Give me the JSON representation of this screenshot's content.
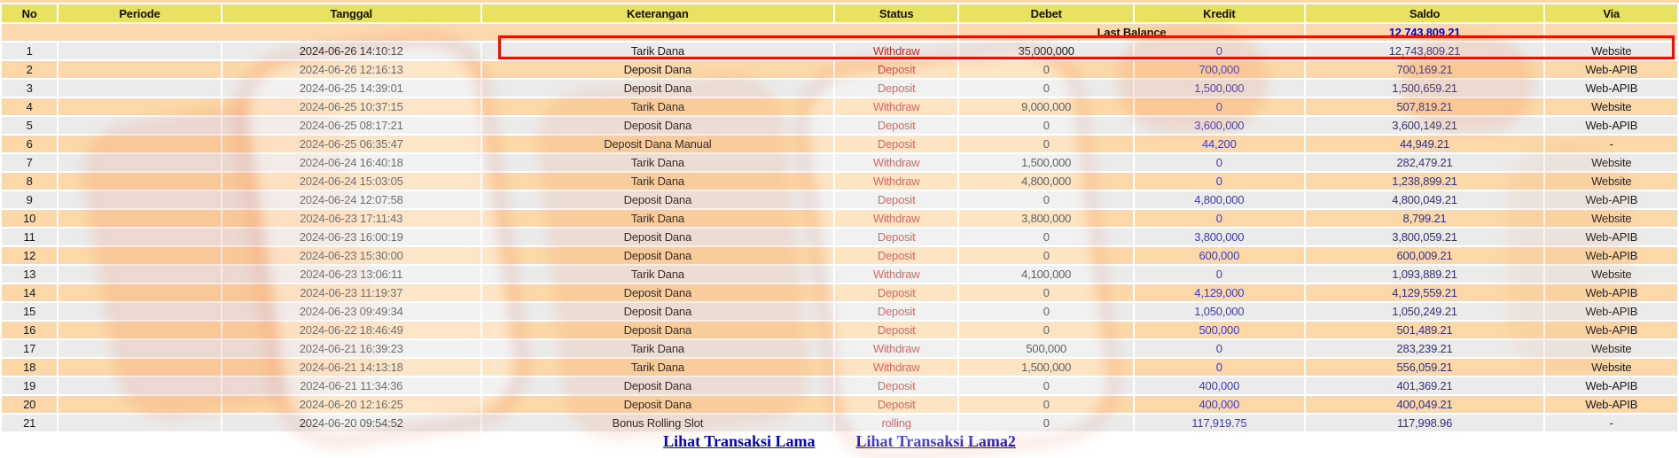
{
  "table": {
    "columns": [
      "No",
      "Periode",
      "Tanggal",
      "Keterangan",
      "Status",
      "Debet",
      "Kredit",
      "Saldo",
      "Via"
    ],
    "last_balance": {
      "label": "Last Balance",
      "saldo": "12,743,809.21"
    },
    "rows": [
      {
        "no": "1",
        "periode": "",
        "tanggal": "2024-06-26 14:10:12",
        "keterangan": "Tarik Dana",
        "status": "Withdraw",
        "debet": "35,000,000",
        "kredit": "0",
        "saldo": "12,743,809.21",
        "via": "Website",
        "highlighted": true
      },
      {
        "no": "2",
        "periode": "",
        "tanggal": "2024-06-26 12:16:13",
        "keterangan": "Deposit Dana",
        "status": "Deposit",
        "debet": "0",
        "kredit": "700,000",
        "saldo": "700,169.21",
        "via": "Web-APIB",
        "highlighted": false
      },
      {
        "no": "3",
        "periode": "",
        "tanggal": "2024-06-25 14:39:01",
        "keterangan": "Deposit Dana",
        "status": "Deposit",
        "debet": "0",
        "kredit": "1,500,000",
        "saldo": "1,500,659.21",
        "via": "Web-APIB",
        "highlighted": false
      },
      {
        "no": "4",
        "periode": "",
        "tanggal": "2024-06-25 10:37:15",
        "keterangan": "Tarik Dana",
        "status": "Withdraw",
        "debet": "9,000,000",
        "kredit": "0",
        "saldo": "507,819.21",
        "via": "Website",
        "highlighted": false
      },
      {
        "no": "5",
        "periode": "",
        "tanggal": "2024-06-25 08:17:21",
        "keterangan": "Deposit Dana",
        "status": "Deposit",
        "debet": "0",
        "kredit": "3,600,000",
        "saldo": "3,600,149.21",
        "via": "Web-APIB",
        "highlighted": false
      },
      {
        "no": "6",
        "periode": "",
        "tanggal": "2024-06-25 06:35:47",
        "keterangan": "Deposit Dana Manual",
        "status": "Deposit",
        "debet": "0",
        "kredit": "44,200",
        "saldo": "44,949.21",
        "via": "-",
        "highlighted": false
      },
      {
        "no": "7",
        "periode": "",
        "tanggal": "2024-06-24 16:40:18",
        "keterangan": "Tarik Dana",
        "status": "Withdraw",
        "debet": "1,500,000",
        "kredit": "0",
        "saldo": "282,479.21",
        "via": "Website",
        "highlighted": false
      },
      {
        "no": "8",
        "periode": "",
        "tanggal": "2024-06-24 15:03:05",
        "keterangan": "Tarik Dana",
        "status": "Withdraw",
        "debet": "4,800,000",
        "kredit": "0",
        "saldo": "1,238,899.21",
        "via": "Website",
        "highlighted": false
      },
      {
        "no": "9",
        "periode": "",
        "tanggal": "2024-06-24 12:07:58",
        "keterangan": "Deposit Dana",
        "status": "Deposit",
        "debet": "0",
        "kredit": "4,800,000",
        "saldo": "4,800,049.21",
        "via": "Web-APIB",
        "highlighted": false
      },
      {
        "no": "10",
        "periode": "",
        "tanggal": "2024-06-23 17:11:43",
        "keterangan": "Tarik Dana",
        "status": "Withdraw",
        "debet": "3,800,000",
        "kredit": "0",
        "saldo": "8,799.21",
        "via": "Website",
        "highlighted": false
      },
      {
        "no": "11",
        "periode": "",
        "tanggal": "2024-06-23 16:00:19",
        "keterangan": "Deposit Dana",
        "status": "Deposit",
        "debet": "0",
        "kredit": "3,800,000",
        "saldo": "3,800,059.21",
        "via": "Web-APIB",
        "highlighted": false
      },
      {
        "no": "12",
        "periode": "",
        "tanggal": "2024-06-23 15:30:00",
        "keterangan": "Deposit Dana",
        "status": "Deposit",
        "debet": "0",
        "kredit": "600,000",
        "saldo": "600,009.21",
        "via": "Web-APIB",
        "highlighted": false
      },
      {
        "no": "13",
        "periode": "",
        "tanggal": "2024-06-23 13:06:11",
        "keterangan": "Tarik Dana",
        "status": "Withdraw",
        "debet": "4,100,000",
        "kredit": "0",
        "saldo": "1,093,889.21",
        "via": "Website",
        "highlighted": false
      },
      {
        "no": "14",
        "periode": "",
        "tanggal": "2024-06-23 11:19:37",
        "keterangan": "Deposit Dana",
        "status": "Deposit",
        "debet": "0",
        "kredit": "4,129,000",
        "saldo": "4,129,559.21",
        "via": "Web-APIB",
        "highlighted": false
      },
      {
        "no": "15",
        "periode": "",
        "tanggal": "2024-06-23 09:49:34",
        "keterangan": "Deposit Dana",
        "status": "Deposit",
        "debet": "0",
        "kredit": "1,050,000",
        "saldo": "1,050,249.21",
        "via": "Web-APIB",
        "highlighted": false
      },
      {
        "no": "16",
        "periode": "",
        "tanggal": "2024-06-22 18:46:49",
        "keterangan": "Deposit Dana",
        "status": "Deposit",
        "debet": "0",
        "kredit": "500,000",
        "saldo": "501,489.21",
        "via": "Web-APIB",
        "highlighted": false
      },
      {
        "no": "17",
        "periode": "",
        "tanggal": "2024-06-21 16:39:23",
        "keterangan": "Tarik Dana",
        "status": "Withdraw",
        "debet": "500,000",
        "kredit": "0",
        "saldo": "283,239.21",
        "via": "Website",
        "highlighted": false
      },
      {
        "no": "18",
        "periode": "",
        "tanggal": "2024-06-21 14:13:18",
        "keterangan": "Tarik Dana",
        "status": "Withdraw",
        "debet": "1,500,000",
        "kredit": "0",
        "saldo": "556,059.21",
        "via": "Website",
        "highlighted": false
      },
      {
        "no": "19",
        "periode": "",
        "tanggal": "2024-06-21 11:34:36",
        "keterangan": "Deposit Dana",
        "status": "Deposit",
        "debet": "0",
        "kredit": "400,000",
        "saldo": "401,369.21",
        "via": "Web-APIB",
        "highlighted": false
      },
      {
        "no": "20",
        "periode": "",
        "tanggal": "2024-06-20 12:16:25",
        "keterangan": "Deposit Dana",
        "status": "Deposit",
        "debet": "0",
        "kredit": "400,000",
        "saldo": "400,049.21",
        "via": "Web-APIB",
        "highlighted": false
      },
      {
        "no": "21",
        "periode": "",
        "tanggal": "2024-06-20 09:54:52",
        "keterangan": "Bonus Rolling Slot",
        "status": "rolling",
        "debet": "0",
        "kredit": "117,919.75",
        "saldo": "117,998.96",
        "via": "-",
        "highlighted": false
      }
    ]
  },
  "footer": {
    "links": [
      {
        "label": "Lihat Transaksi Lama"
      },
      {
        "label": "Lihat Transaksi Lama2"
      }
    ]
  },
  "colors": {
    "header_bg": "#e9e161",
    "row_odd": "#ebebeb",
    "row_even": "#fcd8a8",
    "lastbal_bg": "#fcd8ae",
    "status_red": "#c32a22",
    "kredit_blue": "#3b3bcf",
    "saldo_navy": "#32327e",
    "balance_blue": "#0000bb",
    "link_blue": "#0000cc",
    "highlight_red": "#ee1100"
  }
}
